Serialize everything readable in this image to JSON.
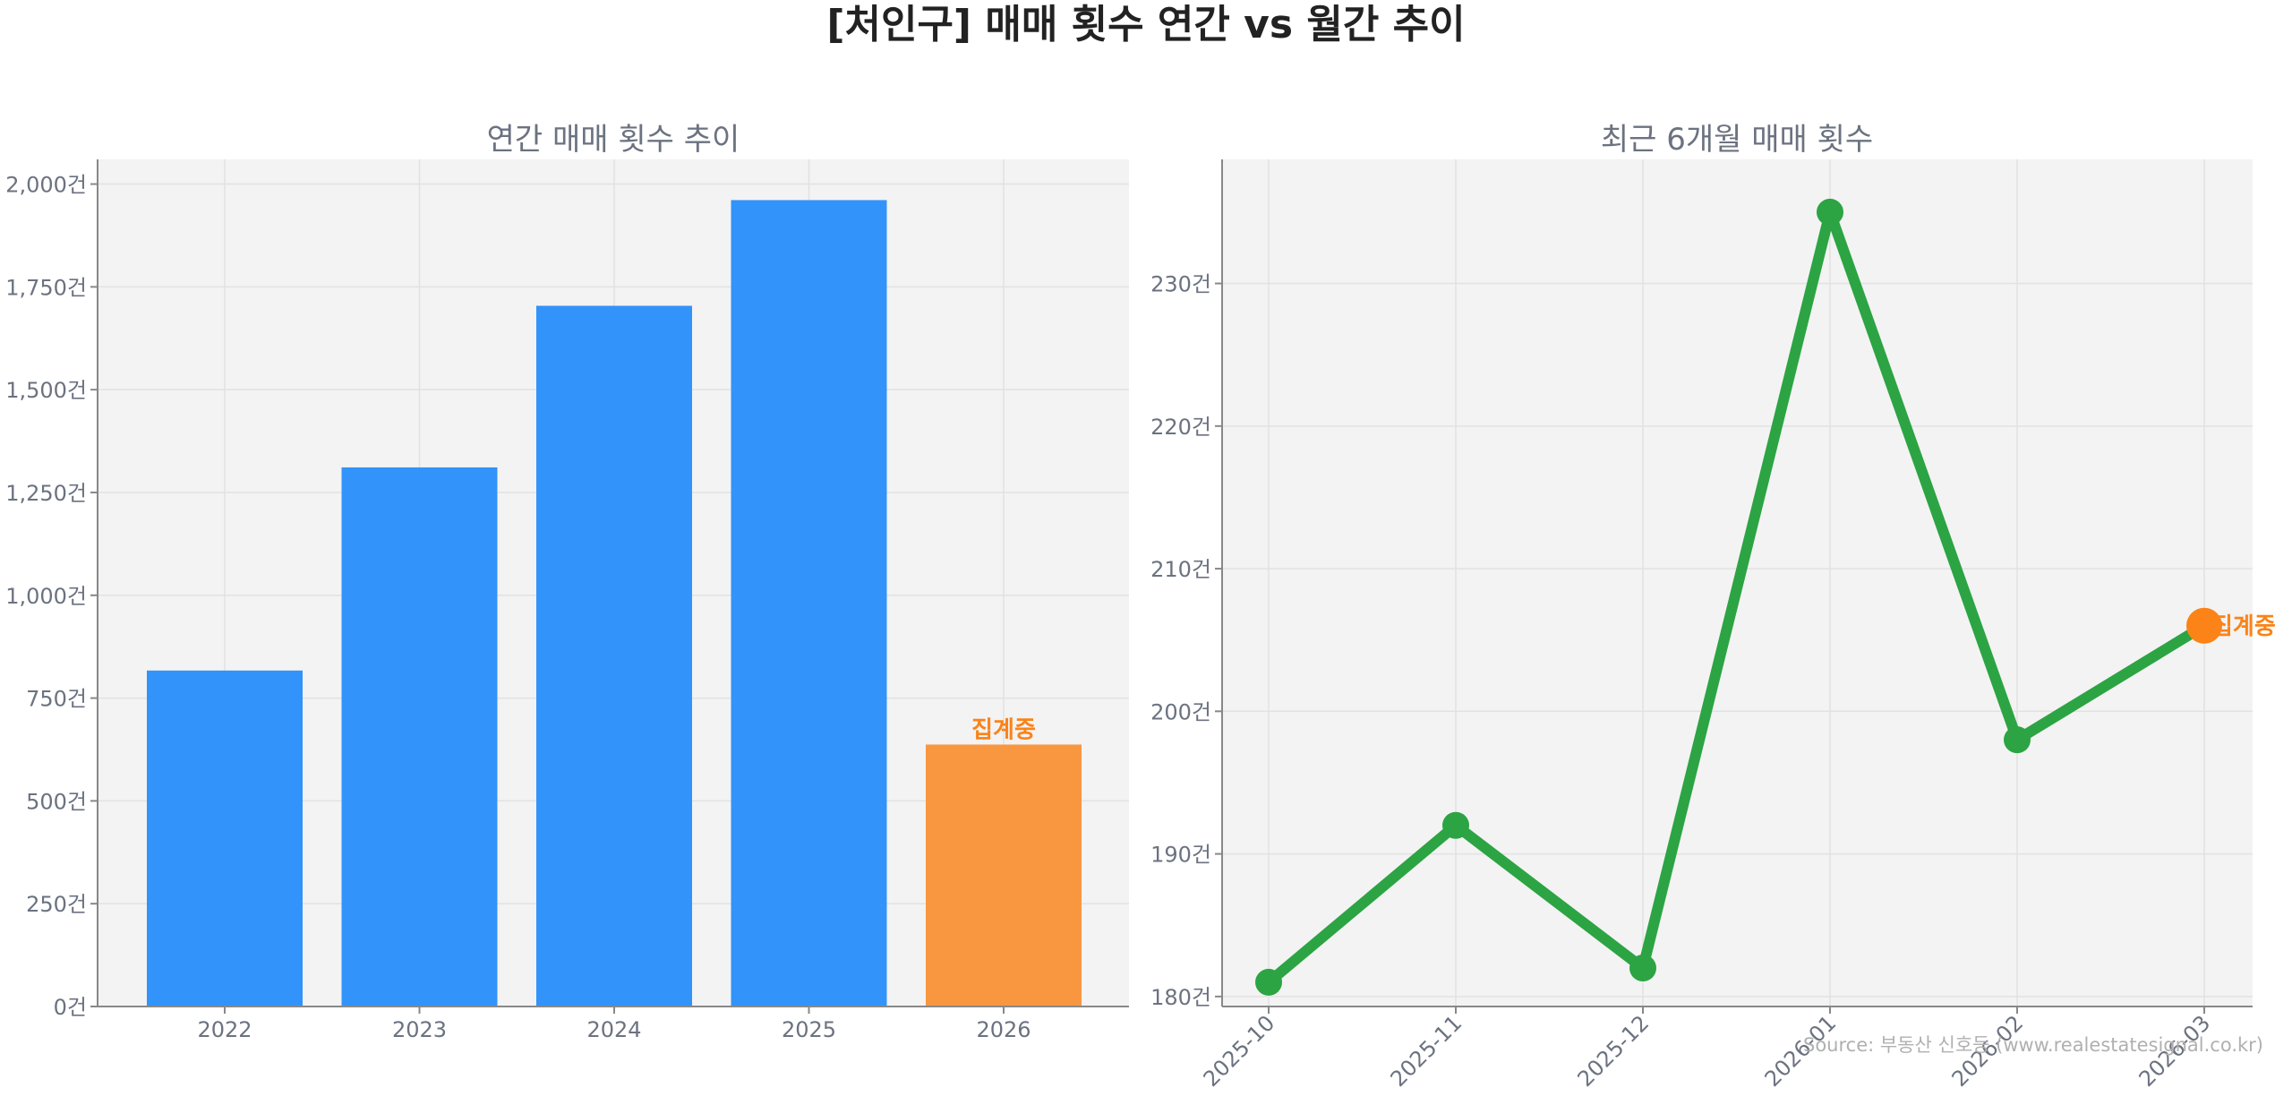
{
  "title": "[처인구] 매매 횟수 연간 vs 월간 추이",
  "source": "Source: 부동산 신호등 (www.realestatesignal.co.kr)",
  "colors": {
    "bar": "#3293fb",
    "highlight": "#f99740",
    "line": "#2ca443",
    "marker_last": "#fb8318",
    "annotation": "#fb8318",
    "plot_bg": "#f3f3f3"
  },
  "chart_data": [
    {
      "type": "bar",
      "title": "연간 매매 횟수 추이",
      "categories": [
        "2022",
        "2023",
        "2024",
        "2025",
        "2026"
      ],
      "values": [
        817,
        1311,
        1704,
        1961,
        637
      ],
      "ylim": [
        0,
        2060
      ],
      "yticks": [
        0,
        250,
        500,
        750,
        1000,
        1250,
        1500,
        1750,
        2000
      ],
      "ytick_labels": [
        "0건",
        "250건",
        "500건",
        "750건",
        "1,000건",
        "1,250건",
        "1,500건",
        "1,750건",
        "2,000건"
      ],
      "grid": true,
      "annotation": {
        "category": "2026",
        "text": "집계중"
      }
    },
    {
      "type": "line",
      "title": "최근 6개월 매매 횟수",
      "x": [
        "2025-10",
        "2025-11",
        "2025-12",
        "2026-01",
        "2026-02",
        "2026-03"
      ],
      "values": [
        181,
        192,
        182,
        235,
        198,
        206
      ],
      "ylim": [
        179.3,
        238.7
      ],
      "yticks": [
        180,
        190,
        200,
        210,
        220,
        230
      ],
      "ytick_labels": [
        "180건",
        "190건",
        "200건",
        "210건",
        "220건",
        "230건"
      ],
      "grid": true,
      "annotation": {
        "x": "2026-03",
        "text": "집계중"
      }
    }
  ]
}
